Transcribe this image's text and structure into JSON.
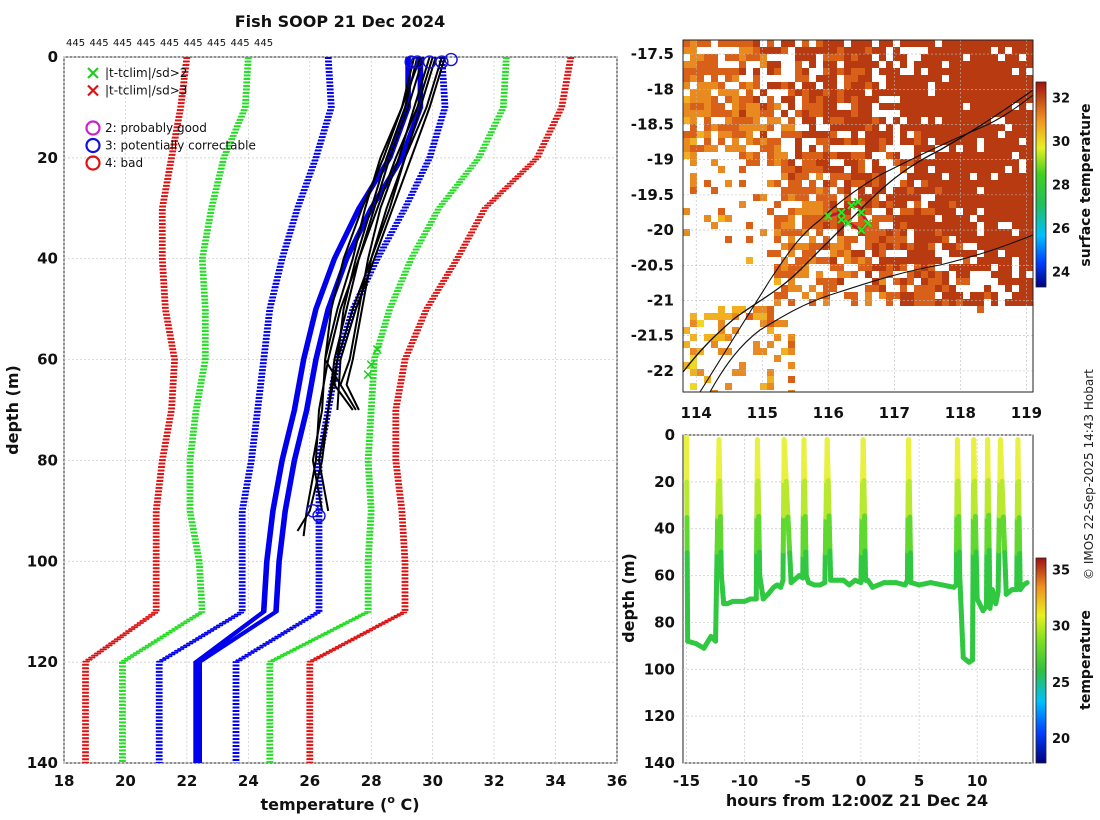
{
  "figure": {
    "title": "Fish SOOP 21 Dec 2024",
    "credit": "© IMOS 22-Sep-2025 14:43 Hobart",
    "profile_ids": [
      "445",
      "445",
      "445",
      "445",
      "445",
      "445",
      "445",
      "445",
      "445"
    ]
  },
  "chart_data": [
    {
      "id": "profiles",
      "type": "line",
      "xlabel": "temperature (",
      "xlabel_sup": "o",
      "xlabel_tail": " C)",
      "ylabel": "depth (m)",
      "xlim": [
        18,
        36
      ],
      "ylim": [
        0,
        140
      ],
      "xticks": [
        18,
        20,
        22,
        24,
        26,
        28,
        30,
        32,
        34,
        36
      ],
      "yticks": [
        0,
        20,
        40,
        60,
        80,
        100,
        120,
        140
      ],
      "legend": {
        "placement": "top-left",
        "entries": [
          {
            "marker": "x",
            "color": "#22cc22",
            "label": "|t-tclim|/sd>2"
          },
          {
            "marker": "x",
            "color": "#dd1111",
            "label": "|t-tclim|/sd>3"
          },
          {
            "marker": "o",
            "color": "#cc22cc",
            "label": "2: probably good"
          },
          {
            "marker": "o",
            "color": "#1111dd",
            "label": "3: potentially correctable"
          },
          {
            "marker": "o",
            "color": "#dd1111",
            "label": "4: bad"
          }
        ]
      },
      "colors": {
        "clim_mean": "#0000ee",
        "sd2": "#22dd22",
        "sd3": "#dd1111",
        "obs": "#000000"
      },
      "climatology": {
        "depth": [
          0,
          10,
          20,
          30,
          40,
          50,
          60,
          70,
          80,
          90,
          100,
          110,
          120,
          140
        ],
        "mean_lines": [
          [
            29.6,
            29.6,
            29.0,
            28.0,
            27.2,
            26.6,
            26.2,
            25.9,
            25.5,
            25.2,
            25.0,
            24.9,
            22.4,
            22.4
          ],
          [
            29.2,
            29.2,
            28.6,
            27.6,
            26.8,
            26.2,
            25.8,
            25.5,
            25.1,
            24.8,
            24.6,
            24.5,
            22.3,
            22.3
          ]
        ],
        "mean_dotted": [
          [
            26.6,
            26.7,
            26.2,
            25.6,
            25.1,
            24.7,
            24.5,
            24.3,
            24.1,
            23.8,
            23.8,
            23.8,
            21.1,
            21.1
          ],
          [
            30.3,
            30.4,
            29.9,
            29.1,
            28.2,
            27.4,
            26.9,
            26.6,
            26.3,
            26.3,
            26.3,
            26.3,
            23.6,
            23.6
          ]
        ],
        "sd2_lines": [
          [
            24.0,
            23.9,
            23.2,
            22.8,
            22.5,
            22.6,
            22.6,
            22.3,
            22.1,
            22.1,
            22.4,
            22.5,
            19.9,
            19.9
          ],
          [
            32.4,
            32.3,
            31.5,
            30.2,
            29.3,
            28.6,
            28.1,
            28.0,
            27.9,
            28.0,
            27.9,
            27.9,
            24.7,
            24.7
          ]
        ],
        "sd3_lines": [
          [
            22.0,
            21.8,
            21.5,
            21.2,
            21.2,
            21.3,
            21.6,
            21.5,
            21.2,
            21.0,
            21.0,
            21.0,
            18.7,
            18.7
          ],
          [
            34.5,
            34.2,
            33.4,
            31.7,
            30.8,
            29.8,
            29.1,
            28.8,
            28.8,
            29.0,
            29.1,
            29.1,
            26.0,
            26.0
          ]
        ]
      },
      "observed_profiles": [
        {
          "depth": [
            0,
            10,
            20,
            30,
            40,
            50,
            60,
            65,
            70
          ],
          "temp": [
            29.5,
            29.1,
            28.5,
            28.0,
            27.5,
            27.1,
            26.9,
            26.8,
            27.4
          ]
        },
        {
          "depth": [
            0,
            10,
            20,
            30,
            40,
            50,
            60,
            65,
            70
          ],
          "temp": [
            29.9,
            29.4,
            28.9,
            28.3,
            27.9,
            27.6,
            27.3,
            27.0,
            27.5
          ]
        },
        {
          "depth": [
            0,
            10,
            20,
            30,
            40,
            50,
            60,
            65,
            70
          ],
          "temp": [
            30.1,
            29.6,
            29.1,
            28.5,
            28.0,
            27.7,
            27.4,
            27.2,
            27.6
          ]
        },
        {
          "depth": [
            0,
            10,
            20,
            30,
            40,
            50,
            60,
            70,
            80,
            90,
            95
          ],
          "temp": [
            29.7,
            29.2,
            28.6,
            28.1,
            27.6,
            27.0,
            26.6,
            26.3,
            26.2,
            25.9,
            25.8
          ]
        },
        {
          "depth": [
            0,
            10,
            20,
            30,
            40,
            50,
            60,
            70,
            80,
            90,
            94
          ],
          "temp": [
            30.3,
            29.8,
            29.1,
            28.6,
            28.0,
            27.4,
            26.9,
            26.6,
            26.4,
            26.0,
            25.6
          ]
        },
        {
          "depth": [
            0,
            10,
            20,
            30,
            40,
            50,
            60,
            70,
            80,
            90
          ],
          "temp": [
            29.4,
            29.0,
            28.3,
            27.8,
            27.4,
            26.9,
            26.5,
            26.4,
            26.1,
            26.4
          ]
        },
        {
          "depth": [
            0,
            10,
            20,
            30,
            40,
            50,
            60,
            70,
            80,
            90
          ],
          "temp": [
            30.0,
            29.5,
            28.8,
            28.2,
            27.6,
            27.2,
            26.8,
            26.6,
            26.3,
            26.6
          ]
        },
        {
          "depth": [
            0,
            10,
            20,
            30,
            40,
            50,
            60,
            65
          ],
          "temp": [
            29.6,
            29.0,
            28.4,
            27.7,
            27.1,
            26.7,
            26.5,
            27.0
          ]
        },
        {
          "depth": [
            0,
            10,
            20,
            30,
            40,
            50,
            60,
            70
          ],
          "temp": [
            30.4,
            29.9,
            29.3,
            28.7,
            28.1,
            27.5,
            27.0,
            26.9
          ]
        }
      ],
      "flag_markers": [
        {
          "temp": 29.5,
          "depth": 1
        },
        {
          "temp": 29.9,
          "depth": 1
        },
        {
          "temp": 30.3,
          "depth": 1
        },
        {
          "temp": 30.6,
          "depth": 0.5
        },
        {
          "temp": 29.3,
          "depth": 1
        },
        {
          "temp": 26.1,
          "depth": 90
        },
        {
          "temp": 26.3,
          "depth": 91
        }
      ],
      "sd2_markers": [
        {
          "temp": 28.0,
          "depth": 61
        },
        {
          "temp": 28.2,
          "depth": 58
        },
        {
          "temp": 27.9,
          "depth": 63
        }
      ]
    },
    {
      "id": "sst_map",
      "type": "heatmap",
      "colorbar_label": "surface temperature",
      "xlim": [
        113.8,
        119.1
      ],
      "ylim": [
        -22.3,
        -17.3
      ],
      "xticks": [
        114,
        115,
        116,
        117,
        118,
        119
      ],
      "yticks": [
        -17.5,
        -18,
        -18.5,
        -19,
        -19.5,
        -20,
        -20.5,
        -21,
        -21.5,
        -22
      ],
      "clim": [
        23.3,
        32.7
      ],
      "colorbar_ticks": [
        24,
        26,
        28,
        30,
        32
      ],
      "track": [
        {
          "lon": 116.0,
          "lat": -19.8
        },
        {
          "lon": 116.2,
          "lat": -19.75
        },
        {
          "lon": 116.35,
          "lat": -19.65
        },
        {
          "lon": 116.45,
          "lat": -19.6
        },
        {
          "lon": 116.5,
          "lat": -19.75
        },
        {
          "lon": 116.6,
          "lat": -19.9
        },
        {
          "lon": 116.5,
          "lat": -20.0
        },
        {
          "lon": 116.3,
          "lat": -19.9
        },
        {
          "lon": 116.2,
          "lat": -19.85
        }
      ]
    },
    {
      "id": "time_depth",
      "type": "scatter",
      "xlabel": "hours from 12:00Z 21 Dec 24",
      "ylabel": "depth (m)",
      "colorbar_label": "temperature",
      "xlim": [
        -15.3,
        14.8
      ],
      "ylim": [
        0,
        140
      ],
      "xticks": [
        -15,
        -10,
        -5,
        0,
        5,
        10
      ],
      "yticks": [
        0,
        20,
        40,
        60,
        80,
        100,
        120,
        140
      ],
      "clim": [
        17.8,
        36
      ],
      "colorbar_ticks": [
        20,
        25,
        30,
        35
      ],
      "series": [
        {
          "name": "tow",
          "x": [
            -15,
            -14.9,
            -14.2,
            -13.5,
            -12.9,
            -12.5,
            -12.2,
            -12.0,
            -11.8,
            -11.5,
            -11.0,
            -10.0,
            -9.5,
            -9.0,
            -8.9,
            -8.7,
            -8.4,
            -8.0,
            -7.5,
            -7.2,
            -6.9,
            -6.7,
            -6.6,
            -6.0,
            -5.3,
            -5.0,
            -4.9,
            -4.7,
            -4.5,
            -4.0,
            -3.5,
            -3.1,
            -2.9,
            -2.6,
            -2.0,
            -1.5,
            -1.0,
            -0.5,
            0.0,
            0.2,
            0.4,
            0.6,
            1.0,
            2.0,
            3.0,
            3.8,
            4.0,
            4.1,
            4.3,
            5.0,
            6.0,
            7.0,
            8.0,
            8.2,
            8.3,
            8.5,
            8.8,
            9.3,
            9.6,
            9.7,
            10.0,
            10.5,
            10.8,
            10.9,
            11.1,
            11.3,
            11.6,
            11.8,
            12.0,
            12.5,
            13.0,
            13.4,
            13.5,
            13.7,
            14.0,
            14.3
          ],
          "depth": [
            0,
            88,
            89,
            91,
            86,
            88,
            2,
            60,
            72,
            72,
            71,
            71,
            70,
            70,
            2,
            60,
            70,
            68,
            65,
            64,
            65,
            62,
            2,
            63,
            60,
            61,
            2,
            60,
            63,
            64,
            64,
            63,
            2,
            62,
            62,
            62,
            64,
            62,
            63,
            2,
            62,
            62,
            65,
            63,
            63,
            64,
            62,
            2,
            63,
            64,
            63,
            64,
            65,
            64,
            2,
            60,
            95,
            97,
            96,
            2,
            70,
            75,
            73,
            2,
            74,
            66,
            72,
            67,
            2,
            68,
            66,
            66,
            2,
            66,
            64,
            63
          ]
        }
      ]
    }
  ]
}
